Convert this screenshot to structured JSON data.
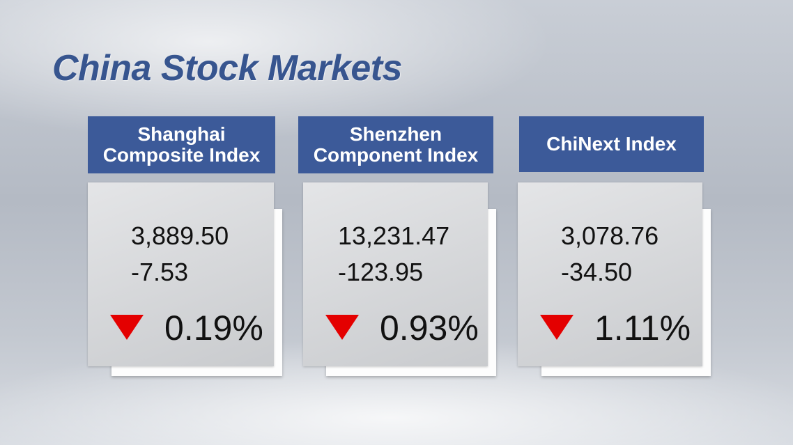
{
  "title": "China Stock Markets",
  "cards": [
    {
      "name_lines": [
        "Shanghai",
        "Composite Index"
      ],
      "value": "3,889.50",
      "change": "-7.53",
      "percent": "0.19%"
    },
    {
      "name_lines": [
        "Shenzhen",
        "Component Index"
      ],
      "value": "13,231.47",
      "change": "-123.95",
      "percent": "0.93%"
    },
    {
      "name_lines": [
        "ChiNext Index"
      ],
      "value": "3,078.76",
      "change": "-34.50",
      "percent": "1.11%"
    }
  ]
}
